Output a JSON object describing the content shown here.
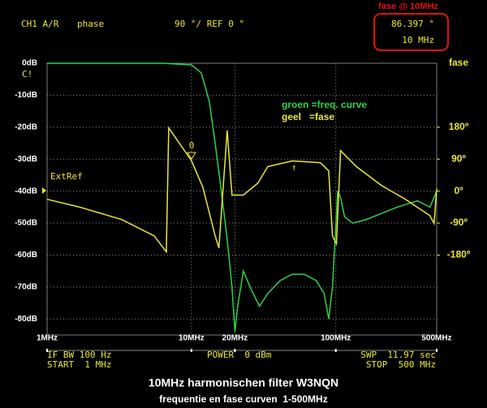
{
  "header": {
    "channel": "CH1 A/R",
    "format": "phase",
    "scale": "90 °/ REF 0 °",
    "marker_value": "86.397 °",
    "marker_freq": "10 MHz",
    "marker_note": "fase @ 10MHz",
    "status": "C!",
    "ref_label": "ExtRef",
    "marker_symbol": "0",
    "marker_arrow": "↑"
  },
  "footer": {
    "if_bw": "IF BW 100 Hz",
    "start": "START  1 MHz",
    "power": "POWER  0 dBm",
    "sweep": "SWP  11.97 sec",
    "stop": "STOP  500 MHz"
  },
  "chart_data": {
    "type": "line",
    "title": "10MHz harmonischen filter W3NQN",
    "subtitle": "frequentie en fase curven  1-500MHz",
    "x_scale": "log",
    "xlim": [
      1,
      500
    ],
    "xticks": [
      {
        "value": 1,
        "label": "1MHz"
      },
      {
        "value": 10,
        "label": "10MHz"
      },
      {
        "value": 20,
        "label": "20MHz"
      },
      {
        "value": 100,
        "label": "100MHz"
      },
      {
        "value": 500,
        "label": "500MHz"
      }
    ],
    "ylim": [
      -85,
      0
    ],
    "yticks": [
      {
        "value": 0,
        "label": "0dB"
      },
      {
        "value": -10,
        "label": "-10dB"
      },
      {
        "value": -20,
        "label": "-20dB"
      },
      {
        "value": -30,
        "label": "-30dB"
      },
      {
        "value": -40,
        "label": "-40dB"
      },
      {
        "value": -50,
        "label": "-50dB"
      },
      {
        "value": -60,
        "label": "-60dB"
      },
      {
        "value": -70,
        "label": "-70dB"
      },
      {
        "value": -80,
        "label": "-80dB"
      }
    ],
    "y2_label": "fase",
    "y2lim": [
      -405,
      360
    ],
    "y2ticks": [
      {
        "value": 180,
        "label": "180º"
      },
      {
        "value": 90,
        "label": "90º"
      },
      {
        "value": 0,
        "label": "0º"
      },
      {
        "value": -90,
        "label": "-90º"
      },
      {
        "value": -180,
        "label": "-180º"
      }
    ],
    "grid": true,
    "series": [
      {
        "name": "groen =freq. curve",
        "color": "#2bd24a",
        "x": [
          1,
          6.3,
          10,
          11.7,
          13.3,
          14.6,
          15.9,
          17.7,
          19.1,
          20,
          20.9,
          22.9,
          26.1,
          29.6,
          33.8,
          41.1,
          49.9,
          60.4,
          73.2,
          83,
          89.4,
          94.9,
          103,
          108,
          115,
          131,
          160,
          207,
          266,
          369,
          449,
          500
        ],
        "values": [
          0,
          0,
          -0.5,
          -3,
          -12,
          -25,
          -38,
          -55,
          -70,
          -84,
          -76,
          -65,
          -71,
          -76,
          -72,
          -68,
          -66,
          -66,
          -68,
          -72,
          -80,
          -70,
          -40,
          -42,
          -48,
          -50,
          -49,
          -47,
          -45,
          -43,
          -45,
          -40
        ]
      },
      {
        "name": "geel   =fase",
        "color": "#e8e83a",
        "axis": "y2",
        "x": [
          1,
          1.72,
          3.29,
          5.52,
          6.7,
          6.96,
          10,
          12,
          14.6,
          15.5,
          17.7,
          19.1,
          22.9,
          28.9,
          33.8,
          49.9,
          78.3,
          89.4,
          94.9,
          101,
          108,
          139,
          207,
          304,
          449,
          480,
          500
        ],
        "values": [
          -23,
          -46,
          -80,
          -126,
          -171,
          178,
          86,
          11,
          -126,
          -160,
          171,
          -11,
          -11,
          23,
          69,
          85,
          80,
          57,
          -126,
          -148,
          114,
          69,
          16,
          -23,
          -69,
          -91,
          7
        ]
      }
    ]
  }
}
